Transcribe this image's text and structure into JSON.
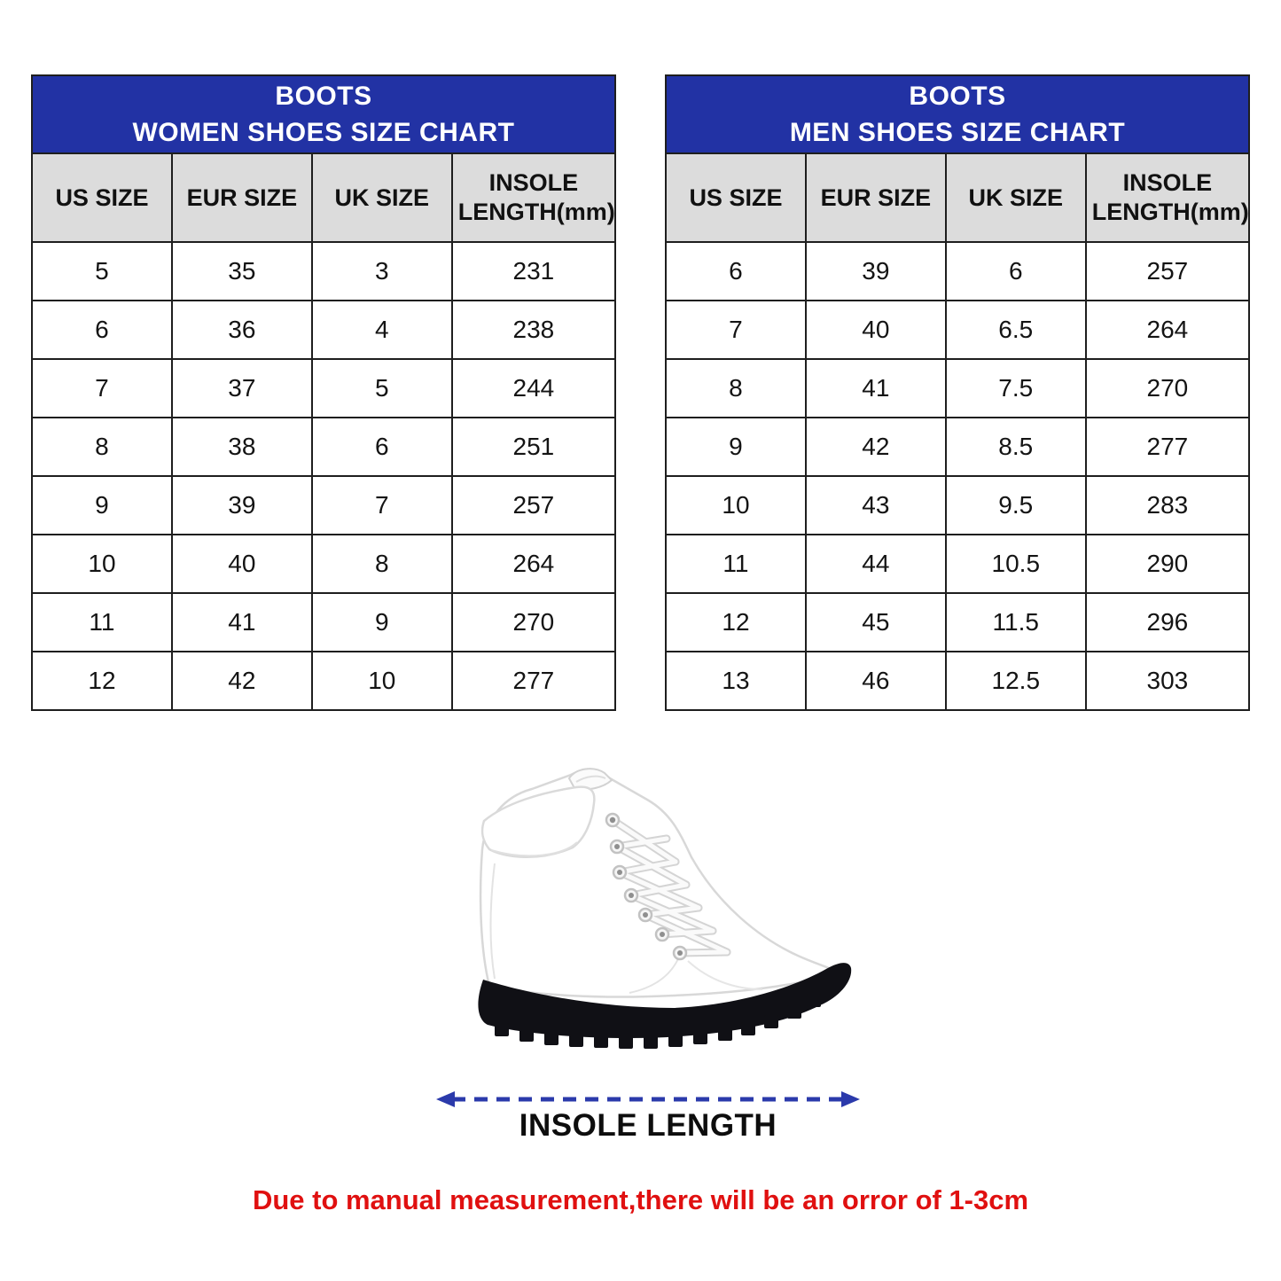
{
  "colors": {
    "header_blue": "#2232a4",
    "header_gray": "#dcdcdc",
    "table_border": "#1e1e1e",
    "arrow_blue": "#2b3aab",
    "note_red": "#e01010"
  },
  "chart_data": [
    {
      "type": "table",
      "title": "BOOTS WOMEN SHOES SIZE CHART",
      "title_line1": "BOOTS",
      "title_line2": "WOMEN SHOES SIZE CHART",
      "columns": [
        "US SIZE",
        "EUR SIZE",
        "UK SIZE",
        "INSOLE LENGTH(mm)"
      ],
      "rows": [
        [
          "5",
          "35",
          "3",
          "231"
        ],
        [
          "6",
          "36",
          "4",
          "238"
        ],
        [
          "7",
          "37",
          "5",
          "244"
        ],
        [
          "8",
          "38",
          "6",
          "251"
        ],
        [
          "9",
          "39",
          "7",
          "257"
        ],
        [
          "10",
          "40",
          "8",
          "264"
        ],
        [
          "11",
          "41",
          "9",
          "270"
        ],
        [
          "12",
          "42",
          "10",
          "277"
        ]
      ]
    },
    {
      "type": "table",
      "title": "BOOTS MEN SHOES SIZE CHART",
      "title_line1": "BOOTS",
      "title_line2": "MEN SHOES SIZE CHART",
      "columns": [
        "US SIZE",
        "EUR SIZE",
        "UK SIZE",
        "INSOLE LENGTH(mm)"
      ],
      "rows": [
        [
          "6",
          "39",
          "6",
          "257"
        ],
        [
          "7",
          "40",
          "6.5",
          "264"
        ],
        [
          "8",
          "41",
          "7.5",
          "270"
        ],
        [
          "9",
          "42",
          "8.5",
          "277"
        ],
        [
          "10",
          "43",
          "9.5",
          "283"
        ],
        [
          "11",
          "44",
          "10.5",
          "290"
        ],
        [
          "12",
          "45",
          "11.5",
          "296"
        ],
        [
          "13",
          "46",
          "12.5",
          "303"
        ]
      ]
    }
  ],
  "footer": {
    "insole_label": "INSOLE LENGTH",
    "disclaimer": "Due to manual measurement,there will be an orror of 1-3cm"
  }
}
